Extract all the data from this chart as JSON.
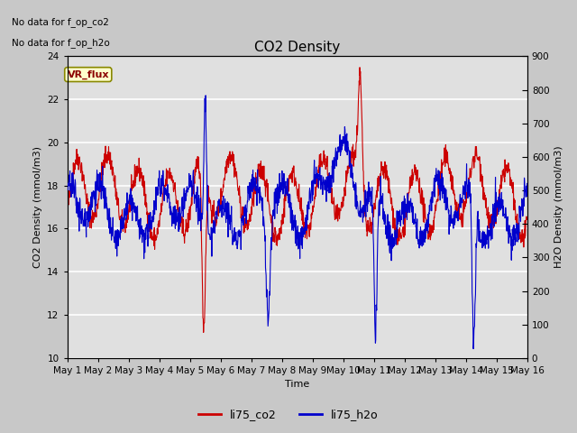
{
  "title": "CO2 Density",
  "xlabel": "Time",
  "ylabel_left": "CO2 Density (mmol/m3)",
  "ylabel_right": "H2O Density (mmol/m3)",
  "ylim_left": [
    10,
    24
  ],
  "ylim_right": [
    0,
    900
  ],
  "yticks_left": [
    10,
    12,
    14,
    16,
    18,
    20,
    22,
    24
  ],
  "yticks_right": [
    0,
    100,
    200,
    300,
    400,
    500,
    600,
    700,
    800,
    900
  ],
  "no_data_text1": "No data for f_op_co2",
  "no_data_text2": "No data for f_op_h2o",
  "vr_flux_label": "VR_flux",
  "legend_labels": [
    "li75_co2",
    "li75_h2o"
  ],
  "line_color_co2": "#cc0000",
  "line_color_h2o": "#0000cc",
  "fig_bg_color": "#c8c8c8",
  "plot_bg_color": "#e0e0e0",
  "title_fontsize": 11,
  "axis_label_fontsize": 8,
  "tick_fontsize": 7.5,
  "legend_fontsize": 9
}
